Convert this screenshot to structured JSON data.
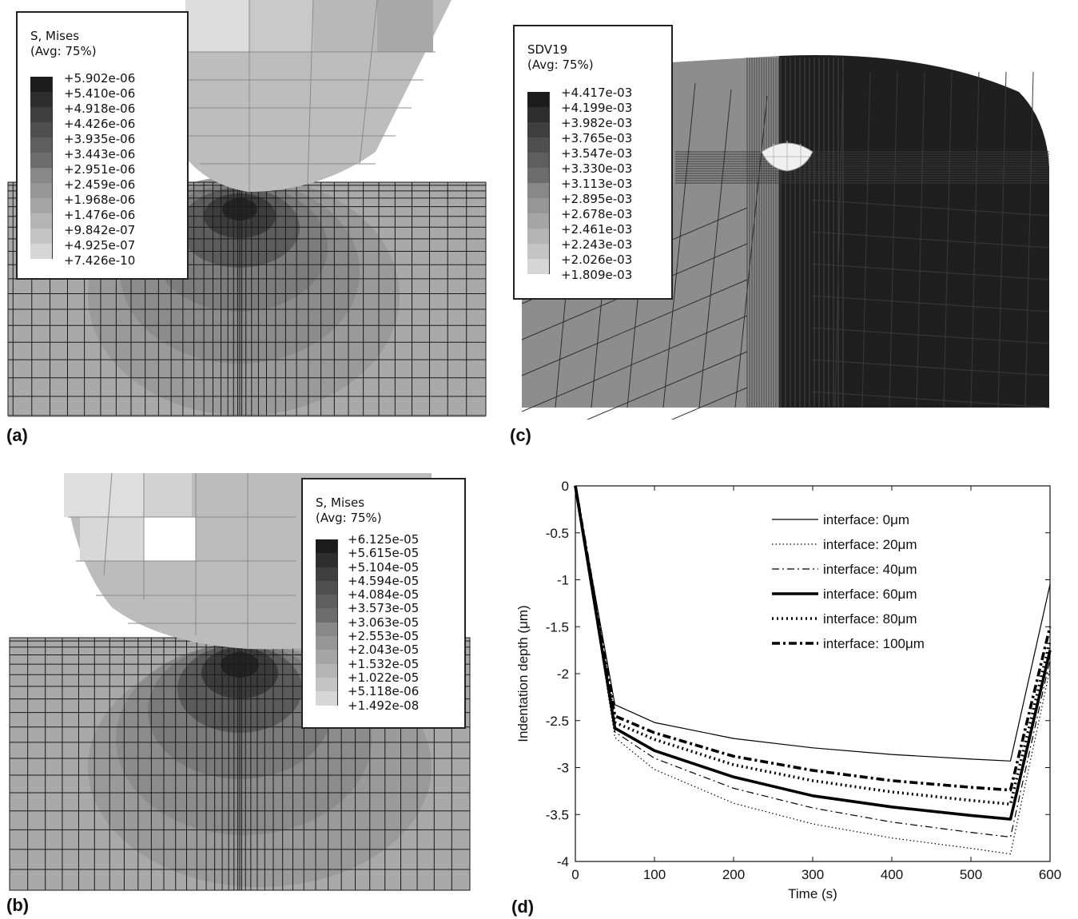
{
  "panels": {
    "a": {
      "label": "(a)",
      "legend": {
        "title1": "S, Mises",
        "title2": "(Avg: 75%)",
        "values": [
          "+5.902e-06",
          "+5.410e-06",
          "+4.918e-06",
          "+4.426e-06",
          "+3.935e-06",
          "+3.443e-06",
          "+2.951e-06",
          "+2.459e-06",
          "+1.968e-06",
          "+1.476e-06",
          "+9.842e-07",
          "+4.925e-07",
          "+7.426e-10"
        ]
      }
    },
    "b": {
      "label": "(b)",
      "legend": {
        "title1": "S, Mises",
        "title2": "(Avg: 75%)",
        "values": [
          "+6.125e-05",
          "+5.615e-05",
          "+5.104e-05",
          "+4.594e-05",
          "+4.084e-05",
          "+3.573e-05",
          "+3.063e-05",
          "+2.553e-05",
          "+2.043e-05",
          "+1.532e-05",
          "+1.022e-05",
          "+5.118e-06",
          "+1.492e-08"
        ]
      }
    },
    "c": {
      "label": "(c)",
      "legend": {
        "title1": "SDV19",
        "title2": "(Avg: 75%)",
        "values": [
          "+4.417e-03",
          "+4.199e-03",
          "+3.982e-03",
          "+3.765e-03",
          "+3.547e-03",
          "+3.330e-03",
          "+3.113e-03",
          "+2.895e-03",
          "+2.678e-03",
          "+2.461e-03",
          "+2.243e-03",
          "+2.026e-03",
          "+1.809e-03"
        ]
      }
    },
    "d": {
      "label": "(d)"
    }
  },
  "legend_colors": [
    "#1c1c1c",
    "#2e2e2e",
    "#3f3f3f",
    "#4f4f4f",
    "#5e5e5e",
    "#6c6c6c",
    "#7a7a7a",
    "#888888",
    "#969696",
    "#a5a5a5",
    "#b4b4b4",
    "#c4c4c4",
    "#d6d6d6"
  ],
  "chart_data": {
    "type": "line",
    "title": "",
    "xlabel": "Time (s)",
    "ylabel": "Indentation depth (μm)",
    "xlim": [
      0,
      600
    ],
    "ylim": [
      -4,
      0
    ],
    "xticks": [
      0,
      100,
      200,
      300,
      400,
      500,
      600
    ],
    "yticks": [
      0,
      -0.5,
      -1,
      -1.5,
      -2,
      -2.5,
      -3,
      -3.5,
      -4
    ],
    "legend_position": "top-right",
    "grid": false,
    "series": [
      {
        "name": "interface: 0μm",
        "style": "solid-thin",
        "x": [
          0,
          50,
          100,
          200,
          300,
          400,
          500,
          550,
          600
        ],
        "y": [
          0,
          -2.33,
          -2.52,
          -2.69,
          -2.79,
          -2.86,
          -2.91,
          -2.93,
          -1.05
        ]
      },
      {
        "name": "interface: 20μm",
        "style": "dotted-thin",
        "x": [
          0,
          50,
          100,
          200,
          300,
          400,
          500,
          550,
          600
        ],
        "y": [
          0,
          -2.68,
          -3.02,
          -3.38,
          -3.6,
          -3.75,
          -3.86,
          -3.92,
          -1.95
        ]
      },
      {
        "name": "interface: 40μm",
        "style": "dashdot-thin",
        "x": [
          0,
          50,
          100,
          200,
          300,
          400,
          500,
          550,
          600
        ],
        "y": [
          0,
          -2.62,
          -2.9,
          -3.22,
          -3.43,
          -3.58,
          -3.69,
          -3.74,
          -1.85
        ]
      },
      {
        "name": "interface: 60μm",
        "style": "solid-thick",
        "x": [
          0,
          50,
          100,
          200,
          300,
          400,
          500,
          550,
          600
        ],
        "y": [
          0,
          -2.58,
          -2.82,
          -3.1,
          -3.3,
          -3.42,
          -3.51,
          -3.55,
          -1.75
        ]
      },
      {
        "name": "interface: 80μm",
        "style": "dotted-thick",
        "x": [
          0,
          50,
          100,
          200,
          300,
          400,
          500,
          550,
          600
        ],
        "y": [
          0,
          -2.52,
          -2.7,
          -2.97,
          -3.14,
          -3.26,
          -3.35,
          -3.39,
          -1.65
        ]
      },
      {
        "name": "interface: 100μm",
        "style": "dashdot-thick",
        "x": [
          0,
          50,
          100,
          200,
          300,
          400,
          500,
          550,
          600
        ],
        "y": [
          0,
          -2.45,
          -2.63,
          -2.88,
          -3.03,
          -3.14,
          -3.21,
          -3.24,
          -1.5
        ]
      }
    ]
  }
}
